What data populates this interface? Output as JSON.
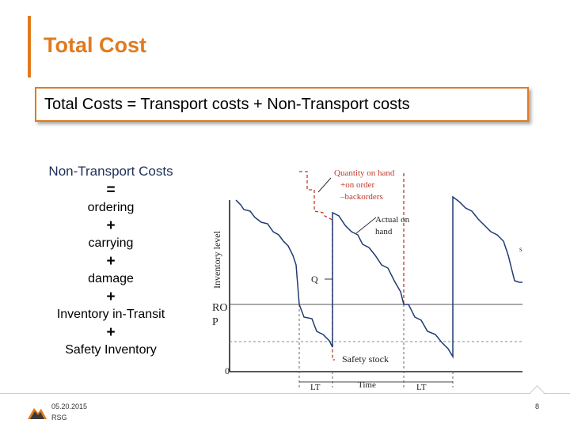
{
  "slide": {
    "title": "Total Cost",
    "formula": "Total Costs = Transport costs + Non-Transport costs"
  },
  "components": {
    "heading": "Non-Transport Costs",
    "equals": "=",
    "items": [
      "ordering",
      "carrying",
      "damage",
      "Inventory in-Transit",
      "Safety Inventory"
    ],
    "plus": "+"
  },
  "diagram": {
    "ylabel": "Inventory level",
    "label_quantity": [
      "Quantity on hand",
      "+on order",
      "–backorders"
    ],
    "label_actual": [
      "Actual on",
      "hand"
    ],
    "label_q": "Q",
    "label_rop": [
      "RO",
      "P"
    ],
    "label_zero": "0",
    "label_safety": "Safety stock",
    "label_lt1": "LT",
    "label_time": "Time",
    "label_lt2": "LT",
    "cutoff_glyph": "s",
    "colors": {
      "actual": "#1f3b73",
      "position": "#c0392b",
      "axis": "#222222"
    }
  },
  "footer": {
    "date": "05.20.2015",
    "org": "RSG",
    "page": "8",
    "logo_icon": "mountain-logo-icon"
  }
}
